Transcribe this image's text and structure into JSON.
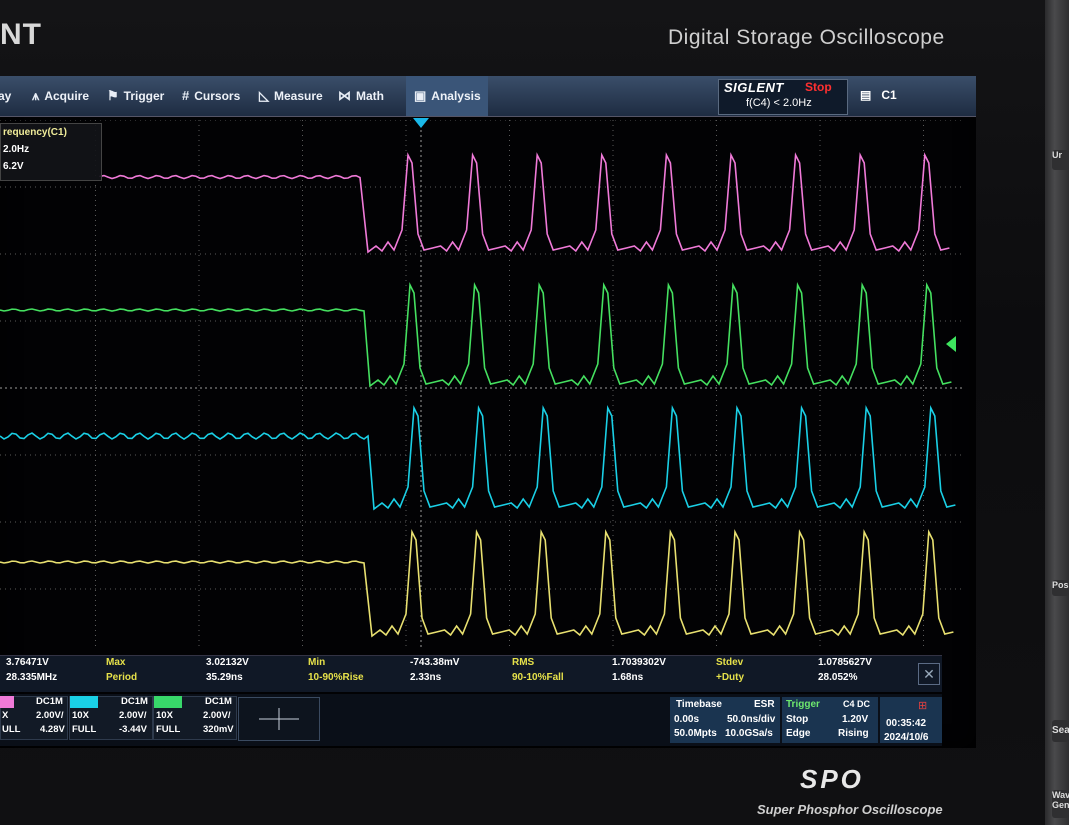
{
  "bezel": {
    "brand": "NT",
    "product": "Digital Storage Oscilloscope",
    "logo_text": "SPO",
    "logo_subtitle": "Super Phosphor Oscilloscope",
    "side_buttons": [
      "Ur",
      "Posi",
      "Searc",
      "Wave Gen"
    ]
  },
  "menu": {
    "items": [
      {
        "label": "ay",
        "icon": "display-icon"
      },
      {
        "label": "Acquire",
        "icon": "acquire-icon"
      },
      {
        "label": "Trigger",
        "icon": "trigger-icon"
      },
      {
        "label": "Cursors",
        "icon": "cursors-icon"
      },
      {
        "label": "Measure",
        "icon": "measure-icon"
      },
      {
        "label": "Math",
        "icon": "math-icon"
      },
      {
        "label": "Analysis",
        "icon": "analysis-icon"
      }
    ],
    "brand": "SIGLENT",
    "run_status": "Stop",
    "trigger_condition": "f(C4) < 2.0Hz",
    "selected_channel": "C1"
  },
  "freq_popup": {
    "title": "requency(C1)",
    "line1": "2.0Hz",
    "line2": "6.2V"
  },
  "measurements": {
    "row1": [
      {
        "value": "3.76471V"
      },
      {
        "label": "Max",
        "value": "3.02132V"
      },
      {
        "label": "Min",
        "value": "-743.38mV"
      },
      {
        "label": "RMS",
        "value": "1.7039302V"
      },
      {
        "label": "Stdev",
        "value": "1.0785627V"
      }
    ],
    "row2": [
      {
        "value": "28.335MHz"
      },
      {
        "label": "Period",
        "value": "35.29ns"
      },
      {
        "label": "10-90%Rise",
        "value": "2.33ns"
      },
      {
        "label": "90-10%Fall",
        "value": "1.68ns"
      },
      {
        "label": "+Duty",
        "value": "28.052%"
      }
    ]
  },
  "channels": [
    {
      "id": "ch1",
      "color": "#f07ad8",
      "coupling": "DC1M",
      "probe": "X",
      "scale": "2.00V/",
      "bw": "ULL",
      "offset": "4.28V"
    },
    {
      "id": "ch2",
      "color": "#1ad0e6",
      "coupling": "DC1M",
      "probe": "10X",
      "scale": "2.00V/",
      "bw": "FULL",
      "offset": "-3.44V"
    },
    {
      "id": "ch3",
      "color": "#38d86a",
      "coupling": "DC1M",
      "probe": "10X",
      "scale": "2.00V/",
      "bw": "FULL",
      "offset": "320mV"
    }
  ],
  "timebase": {
    "title": "Timebase",
    "mode": "ESR",
    "delay": "0.00s",
    "scale": "50.0ns/div",
    "memory": "50.0Mpts",
    "sample_rate": "10.0GSa/s"
  },
  "trigger": {
    "title": "Trigger",
    "source": "C4 DC",
    "state": "Stop",
    "level": "1.20V",
    "type": "Edge",
    "slope": "Rising"
  },
  "clock": {
    "time": "00:35:42",
    "date": "2024/10/6"
  },
  "colors": {
    "ch_pink": "#f07ad8",
    "ch_green": "#45e060",
    "ch_cyan": "#1ad0e6",
    "ch_yellow": "#e8e070",
    "grid": "#5a5a5a",
    "menu_bg": "#2a3c58",
    "stop_red": "#ff3030"
  }
}
